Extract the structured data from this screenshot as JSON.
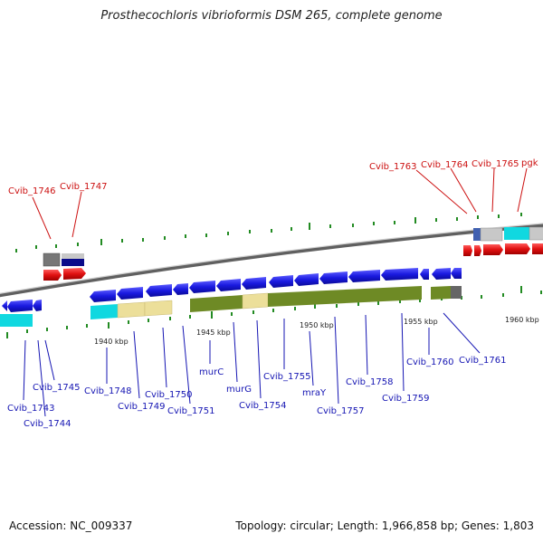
{
  "title": "Prosthecochloris vibrioformis DSM 265, complete genome",
  "footer": {
    "accession": "Accession: NC_009337",
    "summary": "Topology: circular; Length: 1,966,858 bp; Genes: 1,803"
  },
  "colors": {
    "gene_blue": "#1a1ae0",
    "gene_red": "#e01010",
    "cyan": "#10d8e0",
    "khaki": "#ecdf9a",
    "olive": "#6e8a25",
    "label_blue": "#1515b3",
    "label_red": "#cc1010",
    "tick_green": "#228b22"
  },
  "kbp_labels": [
    "1940 kbp",
    "1945 kbp",
    "1950 kbp",
    "1955 kbp",
    "1960 kbp"
  ],
  "labels_bottom": [
    "Cvib_1743",
    "Cvib_1744",
    "Cvib_1745",
    "Cvib_1748",
    "Cvib_1749",
    "Cvib_1750",
    "Cvib_1751",
    "murC",
    "murG",
    "Cvib_1754",
    "Cvib_1755",
    "mraY",
    "Cvib_1757",
    "Cvib_1758",
    "Cvib_1759",
    "Cvib_1760",
    "Cvib_1761"
  ],
  "labels_top": [
    "Cvib_1746",
    "Cvib_1747",
    "Cvib_1763",
    "Cvib_1764",
    "Cvib_1765",
    "pgk"
  ]
}
